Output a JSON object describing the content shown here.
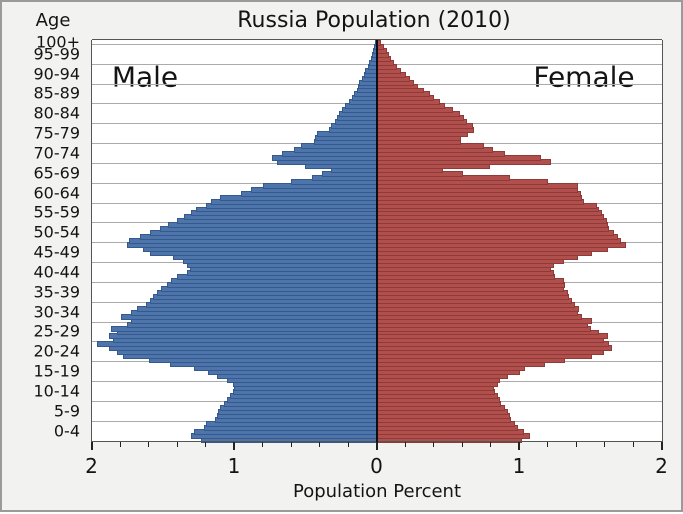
{
  "title": "Russia Population (2010)",
  "left_series_label": "Male",
  "right_series_label": "Female",
  "age_axis_title": "Age",
  "x_axis": {
    "label": "Population Percent",
    "tick_labels": [
      "2",
      "1",
      "0",
      "1",
      "2"
    ],
    "tick_values": [
      -2,
      -1,
      0,
      1,
      2
    ],
    "minor_tick_step": 0.2,
    "range": [
      -2,
      2
    ]
  },
  "age_group_labels": [
    "0-4",
    "5-9",
    "10-14",
    "15-19",
    "20-24",
    "25-29",
    "30-34",
    "35-39",
    "40-44",
    "45-49",
    "50-54",
    "55-59",
    "60-64",
    "65-69",
    "70-74",
    "75-79",
    "80-84",
    "85-89",
    "90-94",
    "95-99",
    "100+"
  ],
  "colors": {
    "male_fill": "#4d74ab",
    "male_edge": "#36598c",
    "female_fill": "#b04f4c",
    "female_edge": "#8e3a38",
    "gridline": "#ababab",
    "spine": "#555555",
    "center_line": "#0d0d14",
    "plot_bg": "#ffffff",
    "outer_bg": "#f2f2f1",
    "text": "#141414"
  },
  "chart_data": {
    "type": "bar",
    "subtype": "population-pyramid",
    "title": "Russia Population (2010)",
    "xlabel": "Population Percent",
    "ylabel": "Age",
    "xlim": [
      -2,
      2
    ],
    "grid": "horizontal-every-5-years",
    "age_group_size": 5,
    "ages_single_year": "index 0..100 (100 = 100+)",
    "series": [
      {
        "name": "Male",
        "side": "left",
        "values": [
          1.23,
          1.3,
          1.28,
          1.21,
          1.2,
          1.13,
          1.12,
          1.11,
          1.1,
          1.07,
          1.05,
          1.03,
          1.01,
          1.0,
          1.01,
          1.05,
          1.12,
          1.18,
          1.28,
          1.45,
          1.6,
          1.78,
          1.82,
          1.88,
          1.96,
          1.85,
          1.88,
          1.82,
          1.86,
          1.75,
          1.72,
          1.79,
          1.72,
          1.68,
          1.62,
          1.59,
          1.57,
          1.54,
          1.51,
          1.47,
          1.44,
          1.4,
          1.33,
          1.31,
          1.33,
          1.36,
          1.43,
          1.59,
          1.64,
          1.75,
          1.74,
          1.66,
          1.59,
          1.52,
          1.46,
          1.4,
          1.35,
          1.3,
          1.27,
          1.2,
          1.16,
          1.1,
          0.95,
          0.88,
          0.8,
          0.6,
          0.45,
          0.38,
          0.32,
          0.5,
          0.7,
          0.73,
          0.66,
          0.58,
          0.53,
          0.44,
          0.43,
          0.42,
          0.33,
          0.32,
          0.29,
          0.28,
          0.26,
          0.24,
          0.22,
          0.19,
          0.17,
          0.16,
          0.14,
          0.13,
          0.12,
          0.1,
          0.09,
          0.08,
          0.06,
          0.05,
          0.04,
          0.035,
          0.025,
          0.02,
          0.012
        ]
      },
      {
        "name": "Female",
        "side": "right",
        "values": [
          1.01,
          1.06,
          1.02,
          0.98,
          0.96,
          0.93,
          0.92,
          0.91,
          0.89,
          0.86,
          0.85,
          0.84,
          0.82,
          0.81,
          0.84,
          0.85,
          0.91,
          0.99,
          1.03,
          1.17,
          1.31,
          1.5,
          1.58,
          1.64,
          1.62,
          1.58,
          1.61,
          1.55,
          1.49,
          1.47,
          1.5,
          1.43,
          1.4,
          1.41,
          1.38,
          1.36,
          1.34,
          1.33,
          1.3,
          1.31,
          1.3,
          1.24,
          1.23,
          1.21,
          1.23,
          1.3,
          1.4,
          1.5,
          1.61,
          1.74,
          1.7,
          1.68,
          1.65,
          1.62,
          1.61,
          1.6,
          1.58,
          1.57,
          1.55,
          1.53,
          1.44,
          1.43,
          1.42,
          1.4,
          1.4,
          1.19,
          0.92,
          0.59,
          0.45,
          0.78,
          1.21,
          1.14,
          0.89,
          0.8,
          0.74,
          0.58,
          0.58,
          0.63,
          0.67,
          0.66,
          0.62,
          0.6,
          0.57,
          0.52,
          0.47,
          0.43,
          0.39,
          0.36,
          0.32,
          0.28,
          0.25,
          0.22,
          0.19,
          0.16,
          0.13,
          0.11,
          0.09,
          0.075,
          0.06,
          0.04,
          0.02
        ]
      }
    ]
  }
}
